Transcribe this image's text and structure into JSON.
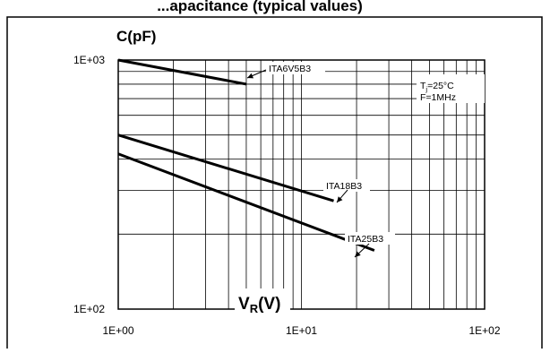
{
  "chart_data": {
    "type": "line",
    "title": "...apacitance (typical values)",
    "ylabel": "C(pF)",
    "xlabel_main": "V",
    "xlabel_sub": "R",
    "xlabel_unit": "(V)",
    "xscale": "log",
    "yscale": "log",
    "xlim": [
      1,
      100
    ],
    "ylim": [
      100,
      1000
    ],
    "grid": true,
    "xticks": [
      {
        "value": 1,
        "label": "1E+00"
      },
      {
        "value": 10,
        "label": "1E+01"
      },
      {
        "value": 100,
        "label": "1E+02"
      }
    ],
    "yticks": [
      {
        "value": 1000,
        "label": "1E+03"
      },
      {
        "value": 100,
        "label": "1E+02"
      }
    ],
    "conditions": {
      "tj_main": "T",
      "tj_sub": "j",
      "tj_rest": "=25°C",
      "freq": "F=1MHz"
    },
    "series": [
      {
        "name": "ITA6V5B3",
        "x": [
          1,
          5
        ],
        "y": [
          1000,
          800
        ]
      },
      {
        "name": "ITA18B3",
        "x": [
          1,
          15
        ],
        "y": [
          500,
          272
        ]
      },
      {
        "name": "ITA25B3",
        "x": [
          1,
          25
        ],
        "y": [
          420,
          172
        ]
      }
    ]
  }
}
